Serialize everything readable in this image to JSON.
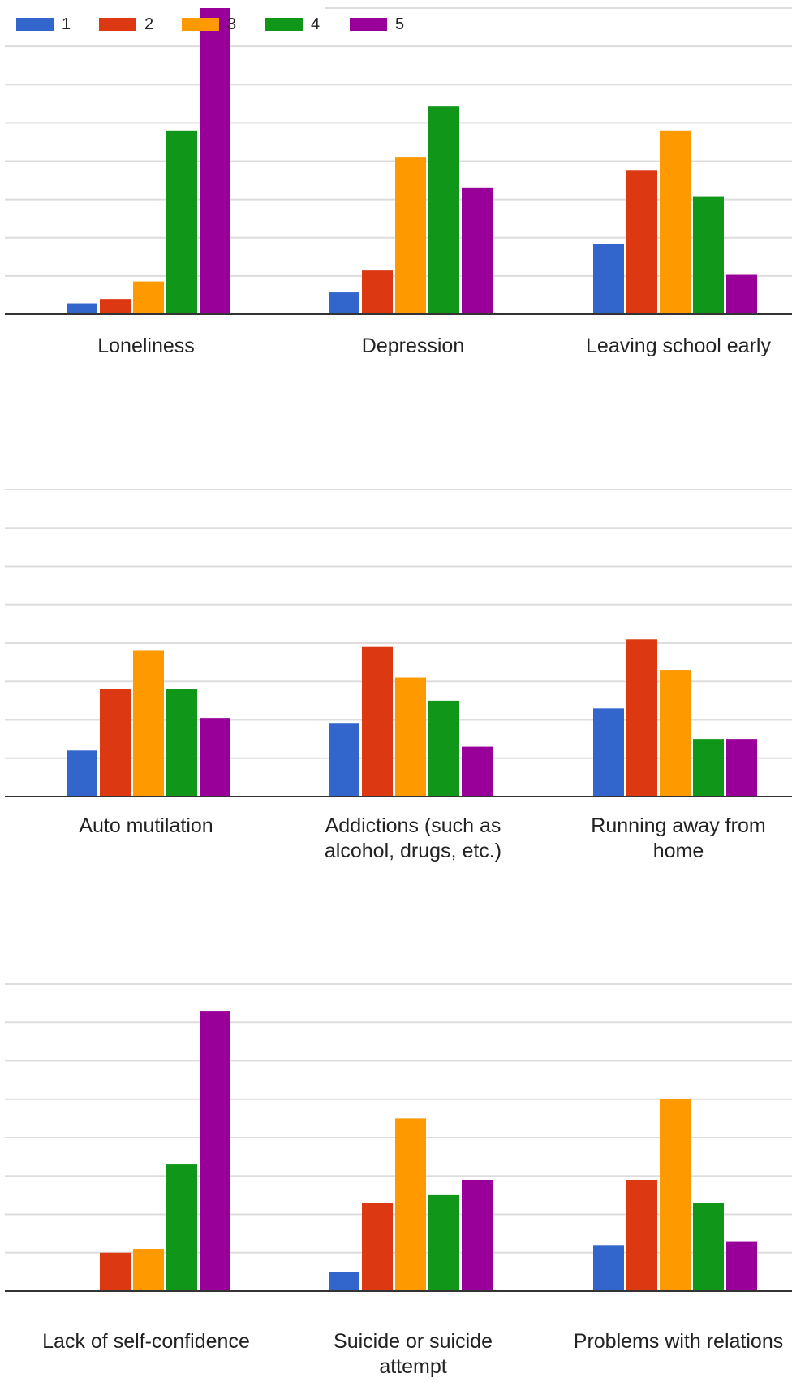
{
  "legend": [
    {
      "label": "1",
      "color": "#3366cc"
    },
    {
      "label": "2",
      "color": "#dc3912"
    },
    {
      "label": "3",
      "color": "#ff9900"
    },
    {
      "label": "4",
      "color": "#109618"
    },
    {
      "label": "5",
      "color": "#990099"
    }
  ],
  "chart_data": [
    {
      "type": "bar",
      "categories": [
        "Loneliness",
        "Depression",
        "Leaving school early"
      ],
      "series": [
        {
          "name": "1",
          "values": [
            2.5,
            5,
            16
          ]
        },
        {
          "name": "2",
          "values": [
            3.5,
            10,
            33
          ]
        },
        {
          "name": "3",
          "values": [
            7.5,
            36,
            42
          ]
        },
        {
          "name": "4",
          "values": [
            42,
            47.5,
            27
          ]
        },
        {
          "name": "5",
          "values": [
            70,
            29,
            9
          ]
        }
      ],
      "ylim": [
        0,
        70
      ],
      "grid": true,
      "legend_position": "top-left"
    },
    {
      "type": "bar",
      "categories": [
        "Auto mutilation",
        "Addictions (such as alcohol, drugs, etc.)",
        "Running away from home"
      ],
      "series": [
        {
          "name": "1",
          "values": [
            12,
            19,
            23
          ]
        },
        {
          "name": "2",
          "values": [
            28,
            39,
            41
          ]
        },
        {
          "name": "3",
          "values": [
            38,
            31,
            33
          ]
        },
        {
          "name": "4",
          "values": [
            28,
            25,
            15
          ]
        },
        {
          "name": "5",
          "values": [
            20.5,
            13,
            15
          ]
        }
      ],
      "ylim": [
        0,
        80
      ],
      "grid": true
    },
    {
      "type": "bar",
      "categories": [
        "Lack of self-confidence",
        "Suicide or suicide attempt",
        "Problems with relations"
      ],
      "series": [
        {
          "name": "1",
          "values": [
            0,
            5,
            12
          ]
        },
        {
          "name": "2",
          "values": [
            10,
            23,
            29
          ]
        },
        {
          "name": "3",
          "values": [
            11,
            45,
            50
          ]
        },
        {
          "name": "4",
          "values": [
            33,
            25,
            23
          ]
        },
        {
          "name": "5",
          "values": [
            73,
            29,
            13
          ]
        }
      ],
      "ylim": [
        0,
        80
      ],
      "grid": true
    }
  ]
}
